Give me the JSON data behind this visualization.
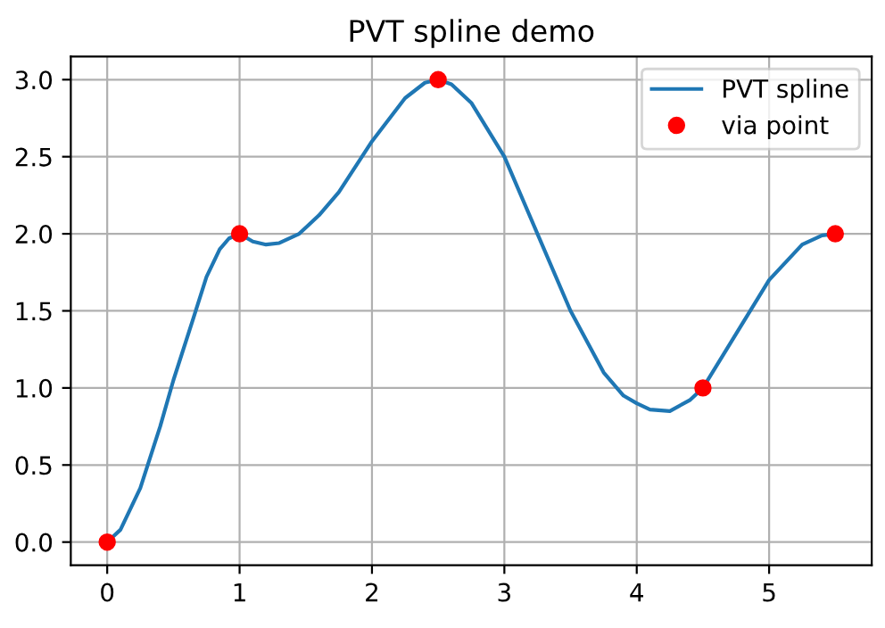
{
  "chart_data": {
    "type": "line",
    "title": "PVT spline demo",
    "series": [
      {
        "name": "PVT spline",
        "color": "#1f77b4",
        "marker": "none",
        "x": [
          0,
          0.1,
          0.25,
          0.4,
          0.5,
          0.65,
          0.75,
          0.85,
          0.92,
          1.0,
          1.1,
          1.2,
          1.3,
          1.45,
          1.6,
          1.75,
          2.0,
          2.25,
          2.4,
          2.5,
          2.6,
          2.75,
          3.0,
          3.25,
          3.5,
          3.75,
          3.9,
          4.0,
          4.1,
          4.25,
          4.4,
          4.5,
          4.75,
          5.0,
          5.25,
          5.4,
          5.5
        ],
        "values": [
          0,
          0.08,
          0.35,
          0.75,
          1.05,
          1.45,
          1.72,
          1.9,
          1.97,
          2.0,
          1.95,
          1.93,
          1.94,
          2.0,
          2.12,
          2.27,
          2.6,
          2.88,
          2.98,
          3.0,
          2.97,
          2.85,
          2.5,
          2.0,
          1.5,
          1.1,
          0.95,
          0.9,
          0.86,
          0.85,
          0.92,
          1.0,
          1.35,
          1.7,
          1.93,
          1.99,
          2.0
        ]
      },
      {
        "name": "via point",
        "type": "scatter",
        "color": "#ff0000",
        "marker": "circle",
        "x": [
          0,
          1,
          2.5,
          4.5,
          5.5
        ],
        "values": [
          0,
          2,
          3,
          1,
          2
        ]
      }
    ],
    "xlim": [
      -0.275,
      5.775
    ],
    "ylim": [
      -0.15,
      3.15
    ],
    "xticks": [
      0,
      1,
      2,
      3,
      4,
      5
    ],
    "yticks": [
      {
        "value": 0,
        "label": "0.0"
      },
      {
        "value": 0.5,
        "label": "0.5"
      },
      {
        "value": 1,
        "label": "1.0"
      },
      {
        "value": 1.5,
        "label": "1.5"
      },
      {
        "value": 2,
        "label": "2.0"
      },
      {
        "value": 2.5,
        "label": "2.5"
      },
      {
        "value": 3,
        "label": "3.0"
      }
    ],
    "grid": true,
    "legend": "top right"
  }
}
